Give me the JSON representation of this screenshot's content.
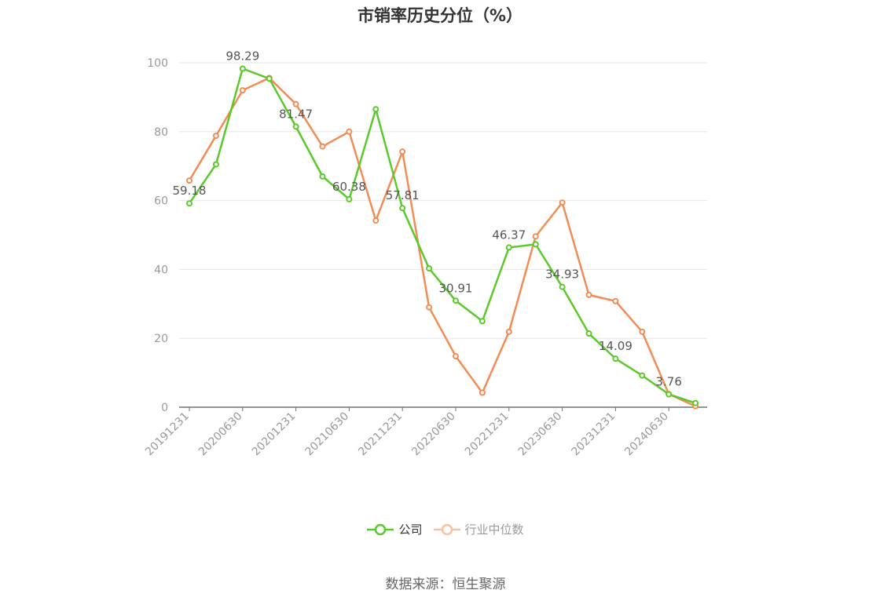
{
  "chart_data": {
    "type": "line",
    "title": "市销率历史分位（%）",
    "x": [
      "20191231",
      "20200331",
      "20200630",
      "20200930",
      "20201231",
      "20210331",
      "20210630",
      "20210930",
      "20211231",
      "20220331",
      "20220630",
      "20220930",
      "20221231",
      "20230331",
      "20230630",
      "20230930",
      "20231231",
      "20240331",
      "20240630",
      "20240930"
    ],
    "x_tick_labels": [
      "20191231",
      "20200630",
      "20201231",
      "20210630",
      "20211231",
      "20220630",
      "20221231",
      "20230630",
      "20231231",
      "20240630"
    ],
    "ylim": [
      0,
      100
    ],
    "y_ticks": [
      "0",
      "20",
      "40",
      "60",
      "80",
      "100"
    ],
    "grid": true,
    "legend_position": "bottom",
    "series": [
      {
        "name": "公司",
        "color": "#5ac92a",
        "values": [
          59.18,
          70.5,
          98.29,
          95.4,
          81.47,
          67.0,
          60.38,
          86.5,
          57.81,
          40.3,
          30.91,
          25.0,
          46.37,
          47.3,
          34.93,
          21.4,
          14.09,
          9.2,
          3.76,
          1.2
        ],
        "data_labels": {
          "0": "59.18",
          "2": "98.29",
          "4": "81.47",
          "6": "60.38",
          "8": "57.81",
          "10": "30.91",
          "12": "46.37",
          "14": "34.93",
          "16": "14.09",
          "18": "3.76"
        }
      },
      {
        "name": "行业中位数",
        "color": "#f28c55",
        "values": [
          65.8,
          78.8,
          92.0,
          95.6,
          88.0,
          75.7,
          80.0,
          54.2,
          74.2,
          29.0,
          14.8,
          4.2,
          21.9,
          49.6,
          59.4,
          32.6,
          30.8,
          21.9,
          3.8,
          0.3
        ],
        "data_labels": {}
      }
    ]
  },
  "source_text": "数据来源：恒生聚源"
}
